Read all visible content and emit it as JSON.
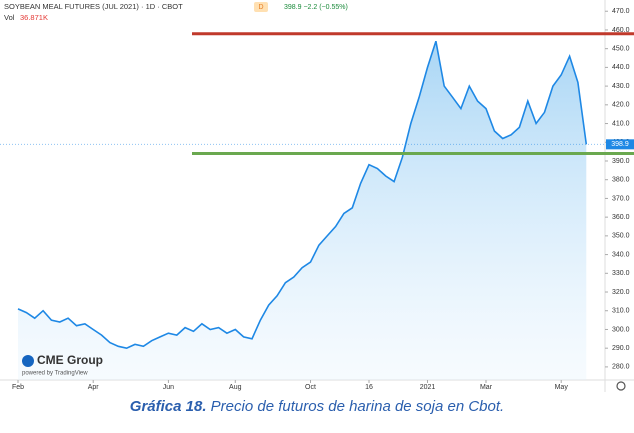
{
  "chart_data": {
    "type": "area",
    "title": "SOYBEAN MEAL FUTURES (JUL 2021) · 1D · CBOT",
    "interval_badge": "D",
    "quote": "398.9 −2.2 (−0.55%)",
    "volume_label": "Vol",
    "volume_value": "36.871K",
    "logo": "CME Group",
    "logo_sub": "powered by TradingView",
    "caption_label": "Gráfica 18.",
    "caption": "Precio de futuros de harina de soja en Cbot.",
    "x": [
      0,
      1,
      2,
      3,
      4,
      5,
      6,
      7,
      8,
      9,
      10,
      11,
      12,
      13,
      14,
      15,
      16,
      17,
      18,
      19,
      20,
      21,
      22,
      23,
      24,
      25,
      26,
      27,
      28,
      29,
      30,
      31,
      32,
      33,
      34,
      35,
      36,
      37,
      38,
      39,
      40,
      41,
      42,
      43,
      44,
      45,
      46,
      47,
      48,
      49,
      50,
      51,
      52,
      53,
      54,
      55,
      56,
      57,
      58,
      59,
      60,
      61,
      62,
      63,
      64,
      65,
      66,
      67,
      68
    ],
    "series": [
      {
        "color": "#1e88e5",
        "values": [
          311,
          309,
          306,
          310,
          305,
          304,
          306,
          302,
          303,
          300,
          297,
          293,
          291,
          290,
          292,
          291,
          294,
          296,
          298,
          297,
          301,
          299,
          303,
          300,
          301,
          298,
          300,
          296,
          295,
          305,
          313,
          318,
          325,
          328,
          333,
          336,
          345,
          350,
          355,
          362,
          365,
          378,
          388,
          386,
          382,
          379,
          392,
          410,
          424,
          440,
          454,
          430,
          424,
          418,
          430,
          422,
          418,
          406,
          402,
          404,
          408,
          422,
          410,
          416,
          430,
          436,
          446,
          432,
          398.9
        ]
      }
    ],
    "last_value_label": 398.9,
    "hlines": [
      {
        "value": 458,
        "color": "#c0392b"
      },
      {
        "value": 394,
        "color": "#6aa84f"
      }
    ],
    "xlim": [
      0,
      70
    ],
    "xticks": [
      {
        "value": 0,
        "label": "Feb"
      },
      {
        "value": 9,
        "label": "Apr"
      },
      {
        "value": 18,
        "label": "Jun"
      },
      {
        "value": 26,
        "label": "Aug"
      },
      {
        "value": 35,
        "label": "Oct"
      },
      {
        "value": 42,
        "label": "16"
      },
      {
        "value": 49,
        "label": "2021"
      },
      {
        "value": 56,
        "label": "Mar"
      },
      {
        "value": 65,
        "label": "May"
      }
    ],
    "ylim": [
      273,
      476
    ],
    "yticks": [
      {
        "value": 280,
        "label": "280.0"
      },
      {
        "value": 290,
        "label": "290.0"
      },
      {
        "value": 300,
        "label": "300.0"
      },
      {
        "value": 310,
        "label": "310.0"
      },
      {
        "value": 320,
        "label": "320.0"
      },
      {
        "value": 330,
        "label": "330.0"
      },
      {
        "value": 340,
        "label": "340.0"
      },
      {
        "value": 350,
        "label": "350.0"
      },
      {
        "value": 360,
        "label": "360.0"
      },
      {
        "value": 370,
        "label": "370.0"
      },
      {
        "value": 380,
        "label": "380.0"
      },
      {
        "value": 390,
        "label": "390.0"
      },
      {
        "value": 400,
        "label": "400.0"
      },
      {
        "value": 410,
        "label": "410.0"
      },
      {
        "value": 420,
        "label": "420.0"
      },
      {
        "value": 430,
        "label": "430.0"
      },
      {
        "value": 440,
        "label": "440.0"
      },
      {
        "value": 450,
        "label": "450.0"
      },
      {
        "value": 460,
        "label": "460.0"
      },
      {
        "value": 470,
        "label": "470.0"
      }
    ]
  }
}
